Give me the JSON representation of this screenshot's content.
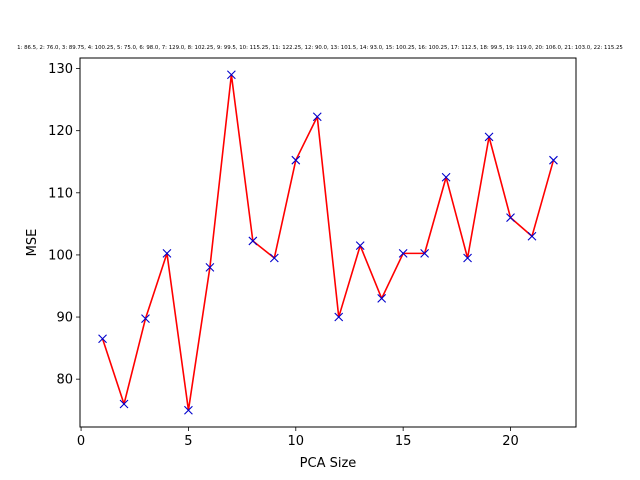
{
  "chart_data": {
    "type": "line",
    "title": "1: 86.5, 2: 76.0, 3: 89.75, 4: 100.25, 5: 75.0, 6: 98.0, 7: 129.0, 8: 102.25, 9: 99.5, 10: 115.25, 11: 122.25, 12: 90.0, 13: 101.5, 14: 93.0, 15: 100.25, 16: 100.25, 17: 112.5, 18: 99.5, 19: 119.0, 20: 106.0, 21: 103.0, 22: 115.25",
    "xlabel": "PCA Size",
    "ylabel": "MSE",
    "x": [
      1,
      2,
      3,
      4,
      5,
      6,
      7,
      8,
      9,
      10,
      11,
      12,
      13,
      14,
      15,
      16,
      17,
      18,
      19,
      20,
      21,
      22
    ],
    "series": [
      {
        "values": [
          86.5,
          76.0,
          89.75,
          100.25,
          75.0,
          98.0,
          129.0,
          102.25,
          99.5,
          115.25,
          122.25,
          90.0,
          101.5,
          93.0,
          100.25,
          100.25,
          112.5,
          99.5,
          119.0,
          106.0,
          103.0,
          115.25
        ],
        "line_color": "#ff0000",
        "marker_color": "#0000cc",
        "marker": "x"
      }
    ],
    "xlim": [
      -0.05,
      23.05
    ],
    "ylim": [
      72.3,
      131.7
    ],
    "xticks": [
      0,
      5,
      10,
      15,
      20
    ],
    "yticks": [
      80,
      90,
      100,
      110,
      120,
      130
    ],
    "grid": false,
    "legend": "none"
  }
}
